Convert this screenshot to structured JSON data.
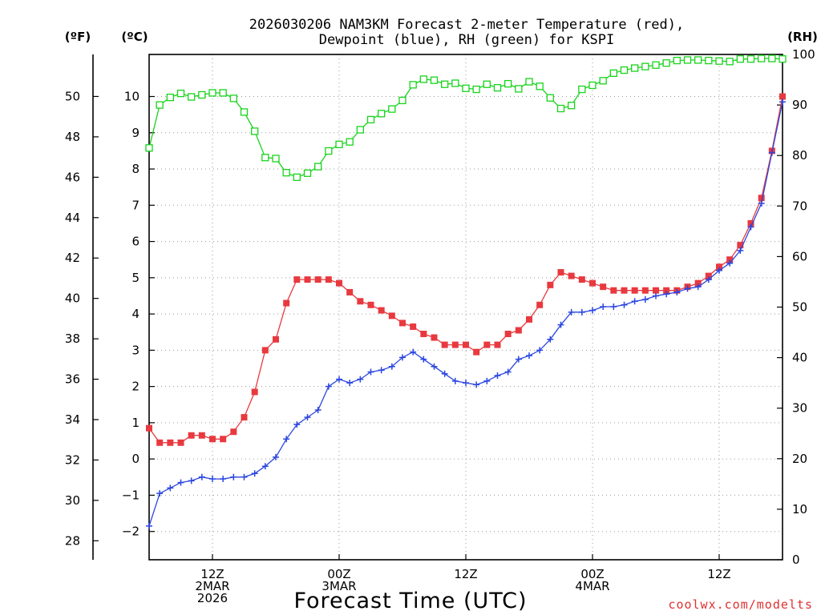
{
  "chart_data": {
    "type": "line",
    "title_lines": [
      "2026030206 NAM3KM Forecast 2-meter Temperature (red),",
      "Dewpoint (blue), RH (green) for KSPI"
    ],
    "xlabel": "Forecast Time (UTC)",
    "credit": "coolwx.com/modelts",
    "left_outer_axis": {
      "unit": "(ºF)",
      "range": [
        27.06,
        52.08
      ],
      "ticks": [
        28,
        30,
        32,
        34,
        36,
        38,
        40,
        42,
        44,
        46,
        48,
        50
      ],
      "tick_labels": [
        "28",
        "30",
        "32",
        "34",
        "36",
        "38",
        "40",
        "42",
        "44",
        "46",
        "48",
        "50"
      ]
    },
    "left_axis": {
      "unit": "(ºC)",
      "range": [
        -2.78,
        11.16
      ],
      "ticks": [
        -2,
        -1,
        0,
        1,
        2,
        3,
        4,
        5,
        6,
        7,
        8,
        9,
        10
      ],
      "tick_labels": [
        "−2",
        "−1",
        "0",
        "1",
        "2",
        "3",
        "4",
        "5",
        "6",
        "7",
        "8",
        "9",
        "10"
      ]
    },
    "right_axis": {
      "unit": "(RH)",
      "range": [
        0,
        100
      ],
      "ticks": [
        0,
        10,
        20,
        30,
        40,
        50,
        60,
        70,
        80,
        90,
        100
      ],
      "tick_labels": [
        "0",
        "10",
        "20",
        "30",
        "40",
        "50",
        "60",
        "70",
        "80",
        "90",
        "100"
      ]
    },
    "x_axis": {
      "start_hour": 6,
      "end_hour": 66,
      "grid_hours": [
        12,
        24,
        36,
        48,
        60
      ],
      "ticks": [
        {
          "hour": 12,
          "lines": [
            "12Z",
            "2MAR",
            "2026"
          ]
        },
        {
          "hour": 24,
          "lines": [
            "00Z",
            "3MAR"
          ]
        },
        {
          "hour": 36,
          "lines": [
            "12Z"
          ]
        },
        {
          "hour": 48,
          "lines": [
            "00Z",
            "4MAR"
          ]
        },
        {
          "hour": 60,
          "lines": [
            "12Z"
          ]
        }
      ]
    },
    "series": [
      {
        "name": "Temperature",
        "axis": "C",
        "color": "#e8393f",
        "marker": "filled-square",
        "x": [
          6,
          7,
          8,
          9,
          10,
          11,
          12,
          13,
          14,
          15,
          16,
          17,
          18,
          19,
          20,
          21,
          22,
          23,
          24,
          25,
          26,
          27,
          28,
          29,
          30,
          31,
          32,
          33,
          34,
          35,
          36,
          37,
          38,
          39,
          40,
          41,
          42,
          43,
          44,
          45,
          46,
          47,
          48,
          49,
          50,
          51,
          52,
          53,
          54,
          55,
          56,
          57,
          58,
          59,
          60,
          61,
          62,
          63,
          64,
          65,
          66
        ],
        "values": [
          0.85,
          0.45,
          0.45,
          0.45,
          0.65,
          0.65,
          0.55,
          0.55,
          0.75,
          1.15,
          1.85,
          3.0,
          3.3,
          4.3,
          4.95,
          4.95,
          4.95,
          4.95,
          4.85,
          4.6,
          4.35,
          4.25,
          4.1,
          3.95,
          3.75,
          3.65,
          3.45,
          3.35,
          3.15,
          3.15,
          3.15,
          2.95,
          3.15,
          3.15,
          3.45,
          3.55,
          3.85,
          4.25,
          4.8,
          5.15,
          5.05,
          4.95,
          4.85,
          4.75,
          4.65,
          4.65,
          4.65,
          4.65,
          4.65,
          4.65,
          4.65,
          4.75,
          4.85,
          5.05,
          5.3,
          5.5,
          5.9,
          6.5,
          7.2,
          8.5,
          10.0
        ]
      },
      {
        "name": "Dewpoint",
        "axis": "C",
        "color": "#2b46e0",
        "marker": "plus",
        "x": [
          6,
          7,
          8,
          9,
          10,
          11,
          12,
          13,
          14,
          15,
          16,
          17,
          18,
          19,
          20,
          21,
          22,
          23,
          24,
          25,
          26,
          27,
          28,
          29,
          30,
          31,
          32,
          33,
          34,
          35,
          36,
          37,
          38,
          39,
          40,
          41,
          42,
          43,
          44,
          45,
          46,
          47,
          48,
          49,
          50,
          51,
          52,
          53,
          54,
          55,
          56,
          57,
          58,
          59,
          60,
          61,
          62,
          63,
          64,
          65,
          66
        ],
        "values": [
          -1.85,
          -0.95,
          -0.8,
          -0.65,
          -0.6,
          -0.5,
          -0.55,
          -0.55,
          -0.5,
          -0.5,
          -0.4,
          -0.2,
          0.05,
          0.55,
          0.95,
          1.15,
          1.35,
          2.0,
          2.2,
          2.1,
          2.2,
          2.4,
          2.45,
          2.55,
          2.8,
          2.95,
          2.75,
          2.55,
          2.35,
          2.15,
          2.1,
          2.05,
          2.15,
          2.3,
          2.4,
          2.75,
          2.85,
          3.0,
          3.3,
          3.7,
          4.05,
          4.05,
          4.1,
          4.2,
          4.2,
          4.25,
          4.35,
          4.4,
          4.5,
          4.55,
          4.6,
          4.7,
          4.75,
          4.95,
          5.2,
          5.4,
          5.75,
          6.4,
          7.05,
          8.45,
          9.85
        ]
      },
      {
        "name": "RH",
        "axis": "RH",
        "color": "#18d41c",
        "marker": "open-square",
        "x": [
          6,
          7,
          8,
          9,
          10,
          11,
          12,
          13,
          14,
          15,
          16,
          17,
          18,
          19,
          20,
          21,
          22,
          23,
          24,
          25,
          26,
          27,
          28,
          29,
          30,
          31,
          32,
          33,
          34,
          35,
          36,
          37,
          38,
          39,
          40,
          41,
          42,
          43,
          44,
          45,
          46,
          47,
          48,
          49,
          50,
          51,
          52,
          53,
          54,
          55,
          56,
          57,
          58,
          59,
          60,
          61,
          62,
          63,
          64,
          65,
          66
        ],
        "values": [
          81.5,
          90,
          91.5,
          92.3,
          91.6,
          92,
          92.4,
          92.4,
          91.3,
          88.6,
          84.8,
          79.6,
          79.4,
          76.6,
          75.7,
          76.5,
          77.8,
          80.9,
          82.2,
          82.7,
          85.1,
          87.1,
          88.3,
          89.2,
          90.9,
          94,
          95.1,
          94.9,
          94.1,
          94.3,
          93.3,
          93.1,
          94.1,
          93.4,
          94.2,
          93.2,
          94.6,
          93.7,
          91.4,
          89.3,
          89.9,
          93.1,
          93.9,
          94.8,
          96.3,
          96.9,
          97.3,
          97.6,
          97.9,
          98.3,
          98.8,
          98.9,
          98.9,
          98.8,
          98.7,
          98.6,
          99.1,
          99.1,
          99.2,
          99.2,
          99.1
        ]
      }
    ]
  }
}
